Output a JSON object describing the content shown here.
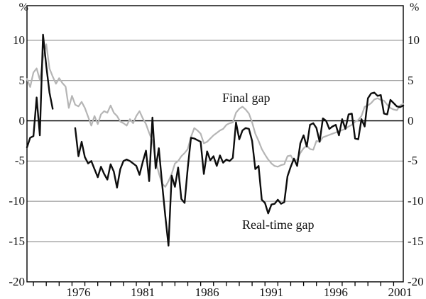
{
  "figure": {
    "y_unit_left": "%",
    "y_unit_right": "%"
  },
  "axes": {
    "y_ticks": [
      {
        "label": "10",
        "value": 10
      },
      {
        "label": "5",
        "value": 5
      },
      {
        "label": "0",
        "value": 0
      },
      {
        "label": "-5",
        "value": -5
      },
      {
        "label": "-10",
        "value": -10
      },
      {
        "label": "-15",
        "value": -15
      },
      {
        "label": "-20",
        "value": -20
      }
    ],
    "x_ticks_labeled": [
      {
        "label": "1976",
        "year": 1976
      },
      {
        "label": "1981",
        "year": 1981
      },
      {
        "label": "1986",
        "year": 1986
      },
      {
        "label": "1991",
        "year": 1991
      },
      {
        "label": "1996",
        "year": 1996
      },
      {
        "label": "2001",
        "year": 2001
      }
    ]
  },
  "chart_data": {
    "type": "line",
    "y_unit": "%",
    "x_domain": [
      1972.0,
      2001.25
    ],
    "ylim": [
      -20,
      14.3
    ],
    "y_gridlines": [
      10,
      5,
      -5,
      -10,
      -15
    ],
    "y_zero_line": 0,
    "x_minor_tick_start": 1972.5,
    "x_minor_tick_end": 2000.5,
    "x_minor_tick_step_years": 1,
    "grid_color": "#9a9a9a",
    "axis_color": "#000000",
    "legend": "inline-annotations",
    "series": [
      {
        "name": "Final gap",
        "color": "#b5b5b5",
        "width": 2.2,
        "step_years": 0.25,
        "segments": [
          {
            "start": 1972.0,
            "values": [
              5.2,
              4.2,
              6.0,
              6.5,
              5.1,
              7.8,
              9.5,
              6.5,
              5.5,
              4.6,
              5.3,
              4.7,
              4.25,
              1.6,
              3.1,
              2.0,
              1.8,
              2.35,
              1.6,
              0.5,
              -0.6,
              0.6,
              -0.4,
              0.8,
              1.2,
              1.0,
              1.9,
              1.0,
              0.6,
              -0.1,
              -0.3,
              -0.6,
              0.2,
              -0.3,
              0.6,
              1.2,
              0.3,
              -0.4,
              -1.5,
              -2.5,
              -4.9,
              -6.5,
              -7.8,
              -8.2,
              -7.5,
              -6.6,
              -5.3,
              -5.0,
              -4.4,
              -4.0,
              -3.5,
              -2.0,
              -0.9,
              -1.2,
              -1.6,
              -2.8,
              -2.6,
              -2.2,
              -1.8,
              -1.5,
              -1.2,
              -1.0,
              -0.5,
              -0.3,
              -0.2,
              1.0,
              1.5,
              1.75,
              1.4,
              0.9,
              -0.2,
              -1.6,
              -2.5,
              -3.5,
              -4.2,
              -4.8,
              -5.3,
              -5.6,
              -5.7,
              -5.5,
              -5.4,
              -4.4,
              -4.3,
              -5.0,
              -4.85,
              -4.0,
              -3.4,
              -3.1,
              -3.5,
              -3.6,
              -2.5,
              -2.6,
              -2.05,
              -1.9,
              -1.75,
              -1.6,
              -1.45,
              -1.3,
              -1.15,
              -1.0,
              -0.7,
              -0.5,
              -0.1,
              0.1,
              0.6,
              1.75,
              1.9,
              2.2,
              2.65,
              2.8,
              2.6,
              2.5,
              2.0,
              1.6,
              1.4,
              1.3,
              1.9,
              2.1
            ]
          }
        ]
      },
      {
        "name": "Real-time gap",
        "color": "#0d0d0d",
        "width": 2.4,
        "step_years": 0.25,
        "segments": [
          {
            "start": 1972.0,
            "values": [
              -3.3,
              -2.1,
              -1.9,
              2.9,
              -1.8,
              10.7,
              6.8,
              3.5,
              1.5
            ]
          },
          {
            "start": 1975.75,
            "values": [
              -0.9,
              -4.4,
              -2.6,
              -4.5,
              -5.3,
              -5.0,
              -6.0,
              -7.0,
              -5.7,
              -6.6,
              -7.3,
              -5.4,
              -6.3,
              -8.3,
              -6.0,
              -5.0,
              -4.8,
              -5.0,
              -5.3,
              -5.6,
              -6.7,
              -5.1,
              -3.7,
              -7.5,
              0.4,
              -5.9,
              -3.4,
              -7.8,
              -11.8,
              -15.5,
              -6.8,
              -8.2,
              -5.8,
              -9.7,
              -10.2,
              -5.8,
              -2.1,
              -2.2,
              -2.4,
              -2.6,
              -6.6,
              -3.8,
              -4.9,
              -4.4,
              -5.6,
              -4.3,
              -5.2,
              -4.8,
              -5.0,
              -4.6,
              -0.2,
              -2.3,
              -1.2,
              -0.9,
              -1.0,
              -2.5,
              -6.0,
              -5.6,
              -9.8,
              -10.2,
              -11.5,
              -10.4,
              -10.3,
              -9.8,
              -10.3,
              -10.1,
              -6.9,
              -5.7,
              -4.7,
              -5.6,
              -2.8,
              -1.8,
              -3.2,
              -0.5,
              -0.3,
              -0.9,
              -2.6,
              0.3,
              0.0,
              -1.0,
              -0.7,
              -0.5,
              -1.8,
              0.2,
              -1.0,
              0.8,
              0.9,
              -2.2,
              -2.3,
              0.2,
              -0.7,
              2.8,
              3.4,
              3.5,
              3.1,
              3.2,
              0.9,
              0.8,
              2.6,
              2.2,
              1.8,
              1.7,
              1.9
            ]
          }
        ]
      }
    ]
  }
}
